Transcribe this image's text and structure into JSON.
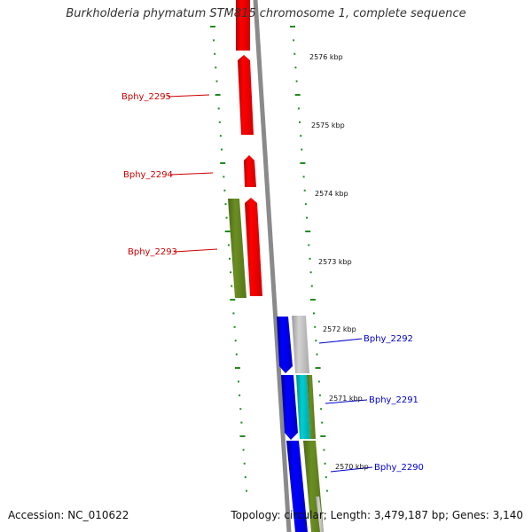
{
  "title": "Burkholderia phymatum STM815 chromosome 1, complete sequence",
  "footer": {
    "accession": "Accession: NC_010622",
    "topology": "Topology: circular; Length: 3,479,187 bp; Genes: 3,140"
  },
  "colors": {
    "reverse_gene": "#ff0000",
    "forward_gene": "#0000ff",
    "green_track": "#6b8e23",
    "cyan_track": "#00ced1",
    "gray_track": "#c0c0c0",
    "backbone": "#808080",
    "tick": "#228b22",
    "reverse_label": "#cc0000",
    "forward_label": "#0000cc"
  },
  "scale_labels": [
    "2576 kbp",
    "2575 kbp",
    "2574 kbp",
    "2573 kbp",
    "2572 kbp",
    "2571 kbp",
    "2570 kbp"
  ],
  "gene_labels": {
    "reverse": [
      "Bphy_2295",
      "Bphy_2294",
      "Bphy_2293"
    ],
    "forward": [
      "Bphy_2292",
      "Bphy_2291",
      "Bphy_2290"
    ]
  }
}
